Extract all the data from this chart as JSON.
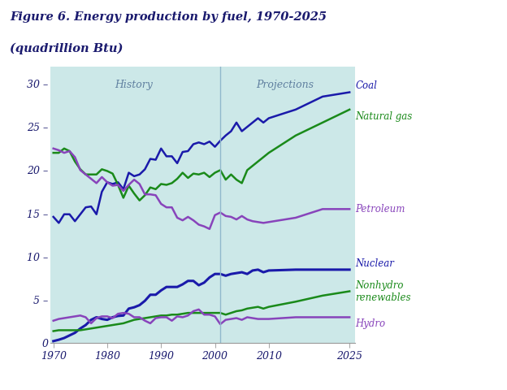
{
  "title_line1": "Figure 6. Energy production by fuel, 1970-2025",
  "title_line2": "(quadrillion Btu)",
  "title_color": "#1a1a6e",
  "bg_color": "#cce8e8",
  "outer_bg": "#ffffff",
  "history_label": "History",
  "projections_label": "Projections",
  "history_label_color": "#6080a0",
  "projections_label_color": "#6080a0",
  "divider_year": 2001,
  "xlim": [
    1969.5,
    2026
  ],
  "ylim": [
    0,
    32
  ],
  "yticks": [
    0,
    5,
    10,
    15,
    20,
    25,
    30
  ],
  "xticks": [
    1970,
    1980,
    1990,
    2000,
    2010,
    2025
  ],
  "coal_color": "#1a1aaa",
  "natural_gas_color": "#1a8a1a",
  "petroleum_color": "#8844bb",
  "nuclear_color": "#1a1aaa",
  "nonhydro_color": "#1a8a1a",
  "hydro_color": "#8844bb",
  "coal": {
    "years": [
      1970,
      1971,
      1972,
      1973,
      1974,
      1975,
      1976,
      1977,
      1978,
      1979,
      1980,
      1981,
      1982,
      1983,
      1984,
      1985,
      1986,
      1987,
      1988,
      1989,
      1990,
      1991,
      1992,
      1993,
      1994,
      1995,
      1996,
      1997,
      1998,
      1999,
      2000,
      2001,
      2002,
      2003,
      2004,
      2005,
      2006,
      2007,
      2008,
      2009,
      2010,
      2015,
      2020,
      2025
    ],
    "values": [
      14.6,
      13.9,
      14.9,
      14.9,
      14.1,
      14.9,
      15.7,
      15.8,
      14.9,
      17.5,
      18.6,
      18.4,
      18.6,
      17.8,
      19.7,
      19.3,
      19.5,
      20.1,
      21.3,
      21.2,
      22.5,
      21.6,
      21.6,
      20.8,
      22.1,
      22.2,
      23.0,
      23.2,
      23.0,
      23.3,
      22.7,
      23.4,
      24.0,
      24.5,
      25.5,
      24.5,
      25.0,
      25.5,
      26.0,
      25.5,
      26.0,
      27.0,
      28.5,
      29.0
    ]
  },
  "natural_gas": {
    "years": [
      1970,
      1971,
      1972,
      1973,
      1974,
      1975,
      1976,
      1977,
      1978,
      1979,
      1980,
      1981,
      1982,
      1983,
      1984,
      1985,
      1986,
      1987,
      1988,
      1989,
      1990,
      1991,
      1992,
      1993,
      1994,
      1995,
      1996,
      1997,
      1998,
      1999,
      2000,
      2001,
      2002,
      2003,
      2004,
      2005,
      2006,
      2007,
      2008,
      2009,
      2010,
      2015,
      2020,
      2025
    ],
    "values": [
      22.0,
      22.0,
      22.5,
      22.2,
      21.0,
      20.1,
      19.5,
      19.5,
      19.5,
      20.1,
      19.9,
      19.6,
      18.3,
      16.8,
      18.2,
      17.3,
      16.5,
      17.1,
      18.0,
      17.8,
      18.4,
      18.3,
      18.5,
      19.0,
      19.7,
      19.1,
      19.6,
      19.5,
      19.7,
      19.2,
      19.7,
      20.0,
      18.9,
      19.5,
      18.9,
      18.5,
      20.0,
      20.5,
      21.0,
      21.5,
      22.0,
      24.0,
      25.5,
      27.0
    ]
  },
  "petroleum": {
    "years": [
      1970,
      1971,
      1972,
      1973,
      1974,
      1975,
      1976,
      1977,
      1978,
      1979,
      1980,
      1981,
      1982,
      1983,
      1984,
      1985,
      1986,
      1987,
      1988,
      1989,
      1990,
      1991,
      1992,
      1993,
      1994,
      1995,
      1996,
      1997,
      1998,
      1999,
      2000,
      2001,
      2002,
      2003,
      2004,
      2005,
      2006,
      2007,
      2008,
      2009,
      2010,
      2015,
      2020,
      2025
    ],
    "values": [
      22.5,
      22.3,
      22.0,
      22.2,
      21.5,
      20.0,
      19.5,
      19.0,
      18.5,
      19.2,
      18.6,
      18.2,
      18.3,
      17.6,
      18.3,
      18.9,
      18.4,
      17.2,
      17.2,
      17.1,
      16.1,
      15.7,
      15.7,
      14.5,
      14.2,
      14.6,
      14.2,
      13.7,
      13.5,
      13.2,
      14.8,
      15.1,
      14.7,
      14.6,
      14.3,
      14.7,
      14.3,
      14.1,
      14.0,
      13.9,
      14.0,
      14.5,
      15.5,
      15.5
    ]
  },
  "nuclear": {
    "years": [
      1970,
      1971,
      1972,
      1973,
      1974,
      1975,
      1976,
      1977,
      1978,
      1979,
      1980,
      1981,
      1982,
      1983,
      1984,
      1985,
      1986,
      1987,
      1988,
      1989,
      1990,
      1991,
      1992,
      1993,
      1994,
      1995,
      1996,
      1997,
      1998,
      1999,
      2000,
      2001,
      2002,
      2003,
      2004,
      2005,
      2006,
      2007,
      2008,
      2009,
      2010,
      2015,
      2020,
      2025
    ],
    "values": [
      0.24,
      0.4,
      0.6,
      0.9,
      1.2,
      1.7,
      2.1,
      2.7,
      3.0,
      2.8,
      2.7,
      3.0,
      3.15,
      3.2,
      4.0,
      4.15,
      4.4,
      4.9,
      5.6,
      5.6,
      6.1,
      6.5,
      6.5,
      6.5,
      6.8,
      7.2,
      7.2,
      6.7,
      7.0,
      7.6,
      8.0,
      8.0,
      7.8,
      8.0,
      8.1,
      8.2,
      8.0,
      8.4,
      8.5,
      8.2,
      8.4,
      8.5,
      8.5,
      8.5
    ]
  },
  "nonhydro": {
    "years": [
      1970,
      1971,
      1972,
      1973,
      1974,
      1975,
      1976,
      1977,
      1978,
      1979,
      1980,
      1981,
      1982,
      1983,
      1984,
      1985,
      1986,
      1987,
      1988,
      1989,
      1990,
      1991,
      1992,
      1993,
      1994,
      1995,
      1996,
      1997,
      1998,
      1999,
      2000,
      2001,
      2002,
      2003,
      2004,
      2005,
      2006,
      2007,
      2008,
      2009,
      2010,
      2015,
      2020,
      2025
    ],
    "values": [
      1.4,
      1.5,
      1.5,
      1.5,
      1.5,
      1.5,
      1.6,
      1.7,
      1.8,
      1.9,
      2.0,
      2.1,
      2.2,
      2.3,
      2.5,
      2.7,
      2.8,
      2.9,
      3.0,
      3.1,
      3.2,
      3.2,
      3.3,
      3.3,
      3.4,
      3.5,
      3.5,
      3.5,
      3.5,
      3.5,
      3.5,
      3.5,
      3.3,
      3.5,
      3.7,
      3.8,
      4.0,
      4.1,
      4.2,
      4.0,
      4.2,
      4.8,
      5.5,
      6.0
    ]
  },
  "hydro": {
    "years": [
      1970,
      1971,
      1972,
      1973,
      1974,
      1975,
      1976,
      1977,
      1978,
      1979,
      1980,
      1981,
      1982,
      1983,
      1984,
      1985,
      1986,
      1987,
      1988,
      1989,
      1990,
      1991,
      1992,
      1993,
      1994,
      1995,
      1996,
      1997,
      1998,
      1999,
      2000,
      2001,
      2002,
      2003,
      2004,
      2005,
      2006,
      2007,
      2008,
      2009,
      2010,
      2015,
      2020,
      2025
    ],
    "values": [
      2.6,
      2.8,
      2.9,
      3.0,
      3.1,
      3.2,
      3.0,
      2.3,
      2.9,
      3.1,
      3.1,
      2.9,
      3.4,
      3.5,
      3.4,
      3.0,
      3.0,
      2.6,
      2.3,
      2.9,
      3.0,
      3.0,
      2.6,
      3.1,
      3.0,
      3.2,
      3.7,
      3.9,
      3.3,
      3.3,
      3.1,
      2.2,
      2.7,
      2.8,
      2.9,
      2.7,
      3.0,
      2.9,
      2.8,
      2.8,
      2.8,
      3.0,
      3.0,
      3.0
    ]
  }
}
